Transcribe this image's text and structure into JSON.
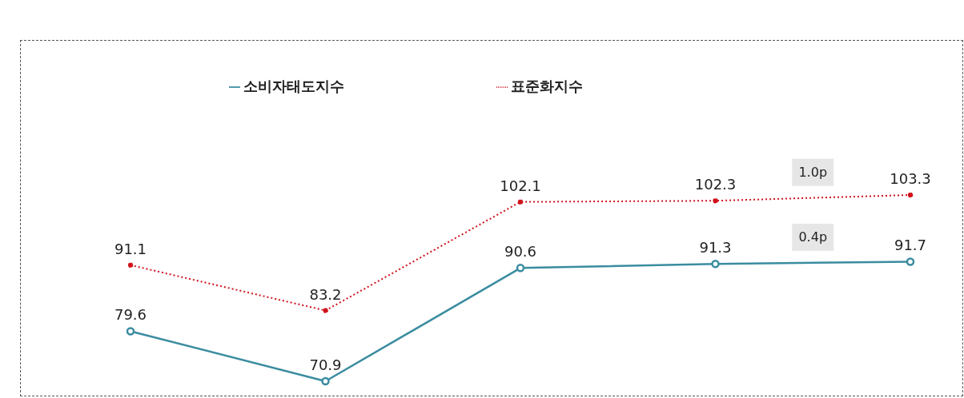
{
  "chart_data": {
    "type": "line",
    "categories": [
      null,
      null,
      null,
      null,
      null
    ],
    "series": [
      {
        "name": "소비자태도지수",
        "color": "#3a8ca0",
        "values": [
          79.6,
          70.9,
          90.6,
          91.3,
          91.7
        ],
        "line_style": "solid"
      },
      {
        "name": "표준화지수",
        "color": "#d0121b",
        "values": [
          91.1,
          83.2,
          102.1,
          102.3,
          103.3
        ],
        "line_style": "dotted"
      }
    ],
    "data_labels": true,
    "marker": "circle",
    "legend": "top",
    "annotations": [
      "1.0p",
      "0.4p"
    ]
  }
}
